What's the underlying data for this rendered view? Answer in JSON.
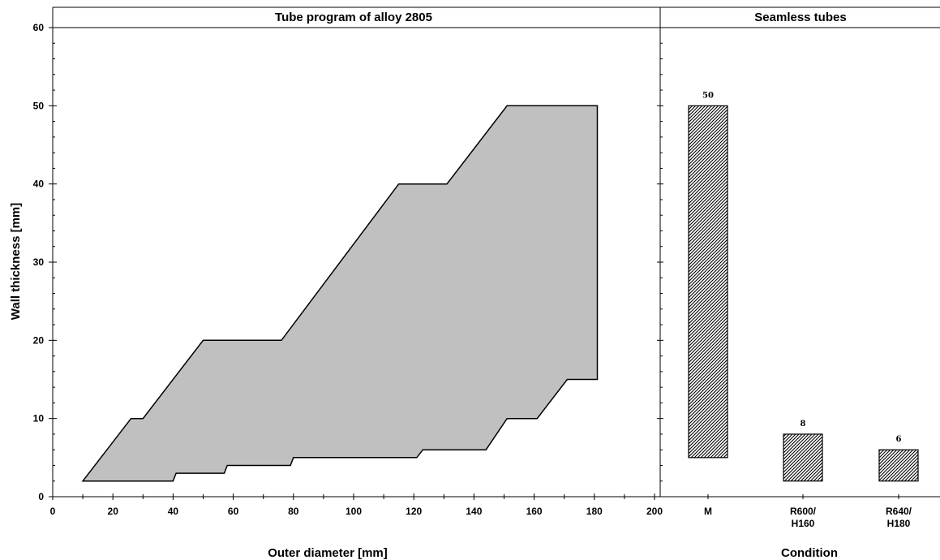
{
  "chart_data": [
    {
      "type": "area",
      "title": "Tube program of alloy 2805",
      "xlabel": "Outer diameter [mm]",
      "ylabel": "Wall thickness [mm]",
      "xlim": [
        0,
        200
      ],
      "ylim": [
        0,
        60
      ],
      "xticks": [
        "0",
        "20",
        "40",
        "60",
        "80",
        "100",
        "120",
        "140",
        "160",
        "180",
        "200"
      ],
      "yticks": [
        "0",
        "10",
        "20",
        "30",
        "40",
        "50",
        "60"
      ],
      "grid": false,
      "fill_color": "#c0c0c0",
      "outline_color": "#000000",
      "upper_boundary": [
        {
          "x": 10,
          "y": 2
        },
        {
          "x": 26,
          "y": 10
        },
        {
          "x": 30,
          "y": 10
        },
        {
          "x": 50,
          "y": 20
        },
        {
          "x": 76,
          "y": 20
        },
        {
          "x": 115,
          "y": 40
        },
        {
          "x": 131,
          "y": 40
        },
        {
          "x": 151,
          "y": 50
        },
        {
          "x": 181,
          "y": 50
        }
      ],
      "lower_boundary": [
        {
          "x": 10,
          "y": 2
        },
        {
          "x": 40,
          "y": 2
        },
        {
          "x": 41,
          "y": 3
        },
        {
          "x": 57,
          "y": 3
        },
        {
          "x": 58,
          "y": 4
        },
        {
          "x": 79,
          "y": 4
        },
        {
          "x": 80,
          "y": 5
        },
        {
          "x": 121,
          "y": 5
        },
        {
          "x": 123,
          "y": 6
        },
        {
          "x": 144,
          "y": 6
        },
        {
          "x": 151,
          "y": 10
        },
        {
          "x": 161,
          "y": 10
        },
        {
          "x": 171,
          "y": 15
        },
        {
          "x": 181,
          "y": 15
        }
      ]
    },
    {
      "type": "bar",
      "title": "Seamless tubes",
      "xlabel": "Condition",
      "ylabel": "",
      "ylim": [
        0,
        60
      ],
      "categories": [
        [
          "M"
        ],
        [
          "R600/",
          "H160"
        ],
        [
          "R640/",
          "H180"
        ]
      ],
      "bars": [
        {
          "bottom": 5,
          "top": 50,
          "label": "50"
        },
        {
          "bottom": 2,
          "top": 8,
          "label": "8"
        },
        {
          "bottom": 2,
          "top": 6,
          "label": "6"
        }
      ],
      "fill": "hatched"
    }
  ]
}
